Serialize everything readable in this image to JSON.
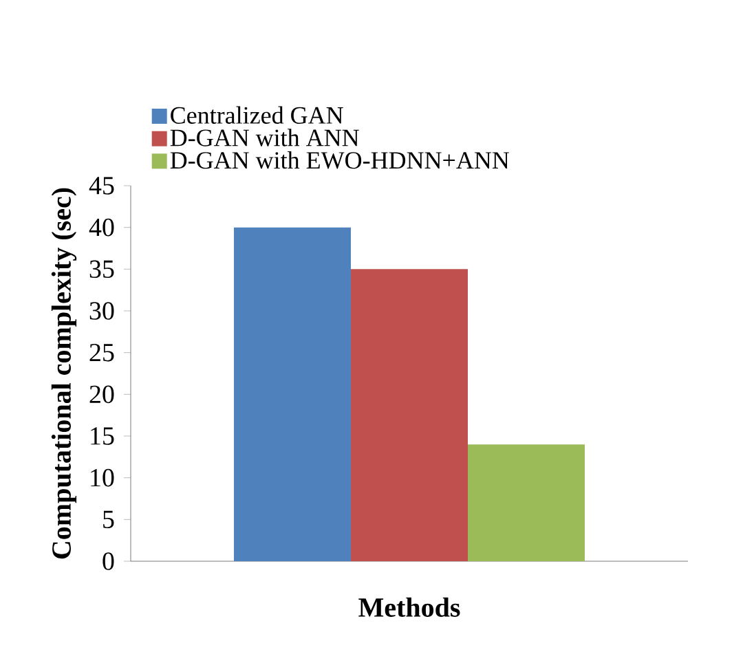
{
  "chart_data": {
    "type": "bar",
    "xlabel": "Methods",
    "ylabel": "Computational complexity (sec)",
    "categories": [
      null
    ],
    "series": [
      {
        "name": "Centralized GAN",
        "color": "#4f81bd",
        "values": [
          40
        ]
      },
      {
        "name": "D-GAN with ANN",
        "color": "#c0504d",
        "values": [
          35
        ]
      },
      {
        "name": "D-GAN with EWO-HDNN+ANN",
        "color": "#9bbb59",
        "values": [
          14
        ]
      }
    ],
    "ylim": [
      0,
      45
    ],
    "yticks": [
      0,
      5,
      10,
      15,
      20,
      25,
      30,
      35,
      40,
      45
    ],
    "grid": false,
    "legend": "top left"
  }
}
